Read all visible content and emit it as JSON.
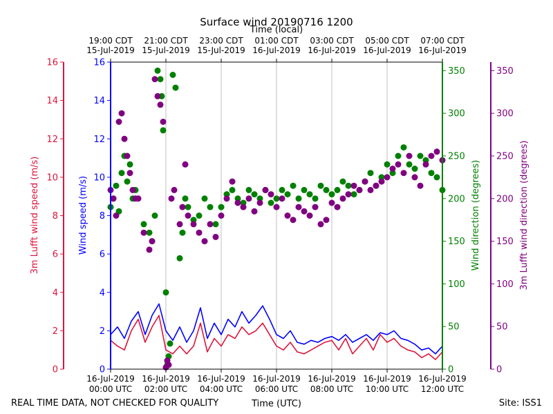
{
  "chart_data": {
    "type": "scatter",
    "title": "Surface wind 20190716 1200",
    "top_axis_label": "Time (local)",
    "top_ticks": [
      {
        "line1": "19:00 CDT",
        "line2": "15-Jul-2019",
        "hour": 0
      },
      {
        "line1": "21:00 CDT",
        "line2": "15-Jul-2019",
        "hour": 2
      },
      {
        "line1": "23:00 CDT",
        "line2": "15-Jul-2019",
        "hour": 4
      },
      {
        "line1": "01:00 CDT",
        "line2": "16-Jul-2019",
        "hour": 6
      },
      {
        "line1": "03:00 CDT",
        "line2": "16-Jul-2019",
        "hour": 8
      },
      {
        "line1": "05:00 CDT",
        "line2": "16-Jul-2019",
        "hour": 10
      },
      {
        "line1": "07:00 CDT",
        "line2": "16-Jul-2019",
        "hour": 12
      }
    ],
    "bottom_axis_label": "Time (UTC)",
    "bottom_ticks": [
      {
        "line1": "16-Jul-2019",
        "line2": "00:00 UTC",
        "hour": 0
      },
      {
        "line1": "16-Jul-2019",
        "line2": "02:00 UTC",
        "hour": 2
      },
      {
        "line1": "16-Jul-2019",
        "line2": "04:00 UTC",
        "hour": 4
      },
      {
        "line1": "16-Jul-2019",
        "line2": "06:00 UTC",
        "hour": 6
      },
      {
        "line1": "16-Jul-2019",
        "line2": "08:00 UTC",
        "hour": 8
      },
      {
        "line1": "16-Jul-2019",
        "line2": "10:00 UTC",
        "hour": 10
      },
      {
        "line1": "16-Jul-2019",
        "line2": "12:00 UTC",
        "hour": 12
      }
    ],
    "xlim_hours": [
      0,
      12
    ],
    "axes": {
      "lufft_speed": {
        "label": "3m Lufft wind speed (m/s)",
        "ylim": [
          0,
          16
        ],
        "ticks": [
          "0",
          "2",
          "4",
          "6",
          "8",
          "10",
          "12",
          "14",
          "16"
        ],
        "color": "#dc143c"
      },
      "wind_speed": {
        "label": "Wind speed (m/s)",
        "ylim": [
          0,
          16
        ],
        "ticks": [
          "0",
          "2",
          "4",
          "6",
          "8",
          "10",
          "12",
          "14",
          "16"
        ],
        "color": "#0000ff"
      },
      "wind_dir": {
        "label": "Wind direction (degrees)",
        "ylim": [
          0,
          360
        ],
        "ticks": [
          "0",
          "50",
          "100",
          "150",
          "200",
          "250",
          "300",
          "350"
        ],
        "color": "#008000"
      },
      "lufft_dir": {
        "label": "3m Lufft wind direction (degrees)",
        "ylim": [
          0,
          360
        ],
        "ticks": [
          "0",
          "50",
          "100",
          "150",
          "200",
          "250",
          "300",
          "350"
        ],
        "color": "#800080"
      }
    },
    "series": [
      {
        "name": "Wind speed",
        "axis": "wind_speed",
        "style": "line",
        "color": "#0000ff",
        "x": [
          0,
          0.25,
          0.5,
          0.75,
          1,
          1.25,
          1.5,
          1.75,
          2,
          2.25,
          2.5,
          2.75,
          3,
          3.25,
          3.5,
          3.75,
          4,
          4.25,
          4.5,
          4.75,
          5,
          5.25,
          5.5,
          5.75,
          6,
          6.25,
          6.5,
          6.75,
          7,
          7.25,
          7.5,
          7.75,
          8,
          8.25,
          8.5,
          8.75,
          9,
          9.25,
          9.5,
          9.75,
          10,
          10.25,
          10.5,
          10.75,
          11,
          11.25,
          11.5,
          11.75,
          12
        ],
        "values": [
          1.8,
          2.2,
          1.6,
          2.5,
          3.0,
          1.8,
          2.8,
          3.4,
          2.0,
          1.5,
          2.2,
          1.4,
          2.0,
          3.2,
          1.6,
          2.4,
          1.8,
          2.6,
          2.2,
          3.0,
          2.4,
          2.8,
          3.3,
          2.6,
          1.8,
          1.6,
          2.0,
          1.4,
          1.3,
          1.5,
          1.4,
          1.6,
          1.7,
          1.5,
          1.8,
          1.4,
          1.6,
          1.8,
          1.5,
          1.9,
          1.8,
          2.0,
          1.6,
          1.5,
          1.3,
          1.0,
          1.1,
          0.8,
          1.2
        ]
      },
      {
        "name": "3m Lufft wind speed",
        "axis": "lufft_speed",
        "style": "line",
        "color": "#dc143c",
        "x": [
          0,
          0.25,
          0.5,
          0.75,
          1,
          1.25,
          1.5,
          1.75,
          2,
          2.25,
          2.5,
          2.75,
          3,
          3.25,
          3.5,
          3.75,
          4,
          4.25,
          4.5,
          4.75,
          5,
          5.25,
          5.5,
          5.75,
          6,
          6.25,
          6.5,
          6.75,
          7,
          7.25,
          7.5,
          7.75,
          8,
          8.25,
          8.5,
          8.75,
          9,
          9.25,
          9.5,
          9.75,
          10,
          10.25,
          10.5,
          10.75,
          11,
          11.25,
          11.5,
          11.75,
          12
        ],
        "values": [
          1.5,
          1.2,
          1.0,
          2.0,
          2.6,
          1.4,
          2.2,
          2.8,
          1.0,
          0.8,
          1.2,
          0.8,
          1.2,
          2.4,
          0.9,
          1.6,
          1.2,
          1.8,
          1.6,
          2.2,
          1.8,
          2.0,
          2.4,
          1.8,
          1.2,
          1.0,
          1.4,
          0.9,
          0.8,
          1.0,
          1.2,
          1.4,
          1.5,
          1.0,
          1.6,
          0.8,
          1.2,
          1.6,
          1.0,
          1.8,
          1.4,
          1.6,
          1.2,
          1.0,
          0.9,
          0.6,
          0.8,
          0.5,
          0.9
        ]
      },
      {
        "name": "Wind direction",
        "axis": "wind_dir",
        "style": "markers",
        "color": "#008000",
        "x": [
          0,
          0.1,
          0.2,
          0.3,
          0.4,
          0.5,
          0.6,
          0.7,
          0.8,
          0.9,
          1.2,
          1.4,
          1.5,
          1.6,
          1.7,
          1.8,
          1.85,
          1.9,
          2.0,
          2.05,
          2.1,
          2.15,
          2.25,
          2.35,
          2.5,
          2.6,
          2.7,
          2.8,
          3.0,
          3.2,
          3.4,
          3.6,
          3.8,
          4.0,
          4.2,
          4.4,
          4.6,
          4.8,
          5.0,
          5.2,
          5.4,
          5.6,
          5.8,
          6.0,
          6.2,
          6.4,
          6.6,
          6.8,
          7.0,
          7.2,
          7.4,
          7.6,
          7.8,
          8.0,
          8.2,
          8.4,
          8.6,
          8.8,
          9.0,
          9.2,
          9.4,
          9.6,
          9.8,
          10.0,
          10.2,
          10.4,
          10.6,
          10.8,
          11.0,
          11.2,
          11.4,
          11.6,
          11.8,
          12.0
        ],
        "values": [
          190,
          200,
          215,
          185,
          230,
          250,
          220,
          240,
          200,
          210,
          170,
          160,
          150,
          180,
          350,
          340,
          320,
          280,
          90,
          5,
          15,
          30,
          345,
          330,
          130,
          160,
          200,
          190,
          175,
          180,
          200,
          190,
          170,
          190,
          205,
          210,
          200,
          195,
          210,
          205,
          200,
          210,
          195,
          200,
          210,
          205,
          215,
          200,
          210,
          205,
          200,
          215,
          210,
          205,
          210,
          220,
          215,
          205,
          210,
          220,
          230,
          215,
          225,
          240,
          230,
          250,
          260,
          240,
          235,
          250,
          245,
          230,
          225,
          210
        ]
      },
      {
        "name": "3m Lufft wind direction",
        "axis": "lufft_dir",
        "style": "markers",
        "color": "#800080",
        "x": [
          0,
          0.1,
          0.2,
          0.3,
          0.4,
          0.5,
          0.6,
          0.7,
          0.8,
          0.9,
          1.0,
          1.2,
          1.4,
          1.5,
          1.6,
          1.7,
          1.8,
          1.9,
          2.0,
          2.05,
          2.1,
          2.2,
          2.3,
          2.5,
          2.6,
          2.7,
          2.8,
          3.0,
          3.2,
          3.4,
          3.6,
          3.8,
          4.0,
          4.2,
          4.4,
          4.6,
          4.8,
          5.0,
          5.2,
          5.4,
          5.6,
          5.8,
          6.0,
          6.2,
          6.4,
          6.6,
          6.8,
          7.0,
          7.2,
          7.4,
          7.6,
          7.8,
          8.0,
          8.2,
          8.4,
          8.6,
          8.8,
          9.0,
          9.2,
          9.4,
          9.6,
          9.8,
          10.0,
          10.2,
          10.4,
          10.6,
          10.8,
          11.0,
          11.2,
          11.4,
          11.6,
          11.8,
          12.0
        ],
        "values": [
          210,
          200,
          180,
          290,
          300,
          270,
          250,
          230,
          210,
          200,
          200,
          160,
          140,
          150,
          340,
          320,
          310,
          290,
          2,
          10,
          5,
          200,
          210,
          170,
          190,
          240,
          180,
          170,
          160,
          150,
          170,
          155,
          180,
          200,
          220,
          195,
          190,
          200,
          185,
          195,
          210,
          205,
          190,
          200,
          180,
          175,
          190,
          185,
          180,
          190,
          170,
          175,
          195,
          190,
          200,
          205,
          215,
          210,
          220,
          210,
          215,
          220,
          225,
          235,
          240,
          230,
          250,
          225,
          215,
          240,
          250,
          255,
          245
        ]
      }
    ]
  },
  "footer": {
    "left": "REAL TIME DATA, NOT CHECKED FOR QUALITY",
    "right": "Site: ISS1"
  }
}
